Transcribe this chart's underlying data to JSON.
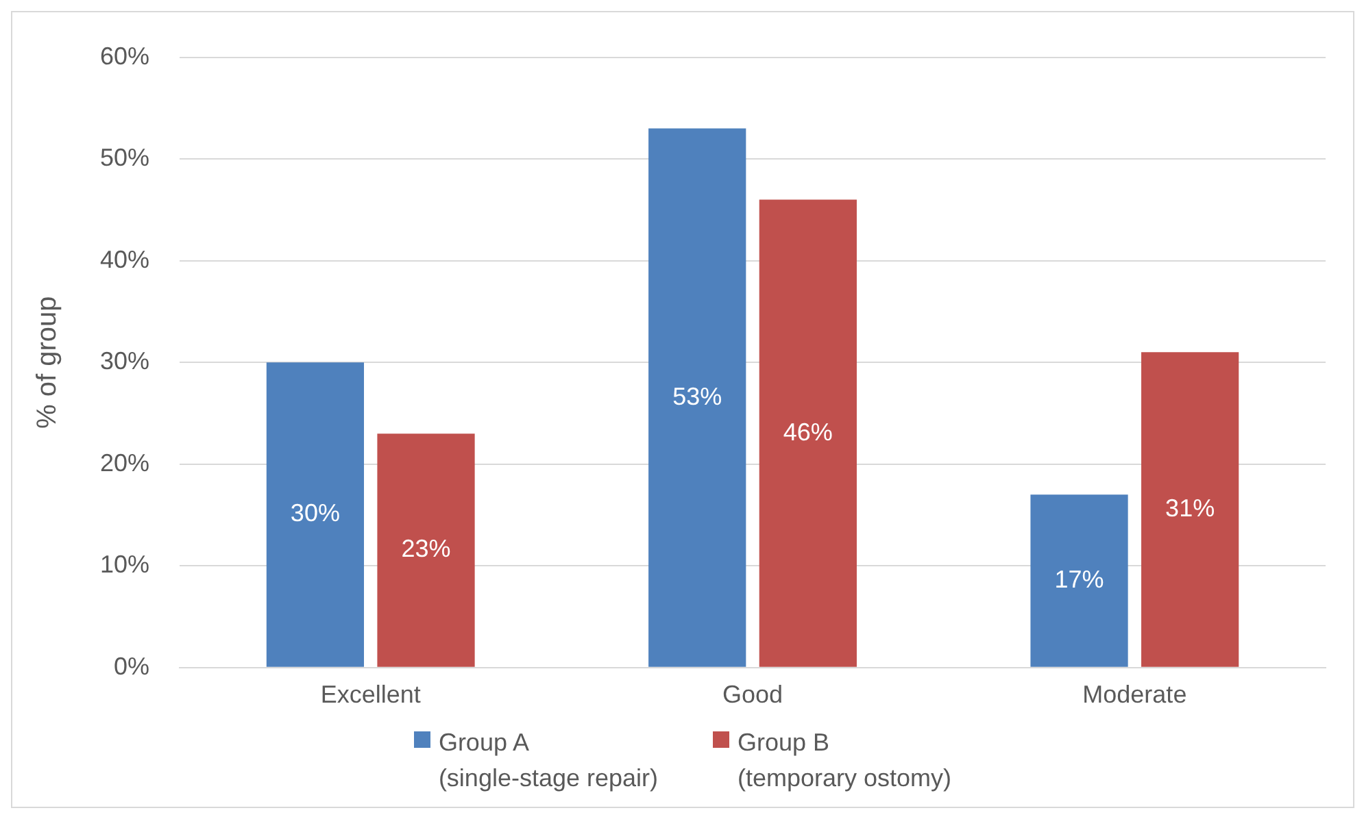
{
  "chart_data": {
    "type": "bar",
    "ylabel": "% of group",
    "categories": [
      "Excellent",
      "Good",
      "Moderate"
    ],
    "series": [
      {
        "name": "Group A\n(single-stage repair)",
        "color": "#4f81bd",
        "values": [
          30,
          53,
          17
        ],
        "value_labels": [
          "30%",
          "53%",
          "17%"
        ]
      },
      {
        "name": "Group B\n(temporary ostomy)",
        "color": "#c0504d",
        "values": [
          23,
          46,
          31
        ],
        "value_labels": [
          "23%",
          "46%",
          "31%"
        ]
      }
    ],
    "ylim": [
      0,
      60
    ],
    "yticks": [
      {
        "value": 0,
        "label": "0%"
      },
      {
        "value": 10,
        "label": "10%"
      },
      {
        "value": 20,
        "label": "20%"
      },
      {
        "value": 30,
        "label": "30%"
      },
      {
        "value": 40,
        "label": "40%"
      },
      {
        "value": 50,
        "label": "50%"
      },
      {
        "value": 60,
        "label": "60%"
      }
    ],
    "grid": "y",
    "legend": "bottom"
  }
}
